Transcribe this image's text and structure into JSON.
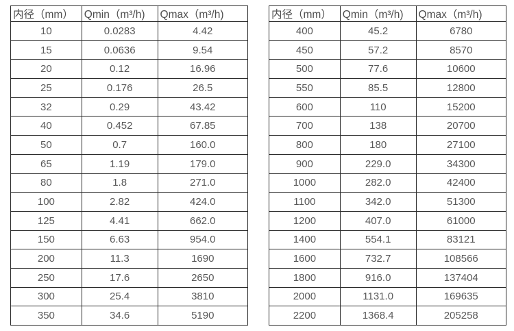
{
  "page": {
    "background_color": "#ffffff",
    "text_color": "#595959",
    "border_color": "#2b2b2b"
  },
  "tables": [
    {
      "name": "flow-range-table-small-dn",
      "headers": [
        "内径（mm）",
        "Qmin（m³/h)",
        "Qmax（m³/h)"
      ],
      "rows": [
        [
          "10",
          "0.0283",
          "4.42"
        ],
        [
          "15",
          "0.0636",
          "9.54"
        ],
        [
          "20",
          "0.12",
          "16.96"
        ],
        [
          "25",
          "0.176",
          "26.5"
        ],
        [
          "32",
          "0.29",
          "43.42"
        ],
        [
          "40",
          "0.452",
          "67.85"
        ],
        [
          "50",
          "0.7",
          "160.0"
        ],
        [
          "65",
          "1.19",
          "179.0"
        ],
        [
          "80",
          "1.8",
          "271.0"
        ],
        [
          "100",
          "2.82",
          "424.0"
        ],
        [
          "125",
          "4.41",
          "662.0"
        ],
        [
          "150",
          "6.63",
          "954.0"
        ],
        [
          "200",
          "11.3",
          "1690"
        ],
        [
          "250",
          "17.6",
          "2650"
        ],
        [
          "300",
          "25.4",
          "3810"
        ],
        [
          "350",
          "34.6",
          "5190"
        ]
      ]
    },
    {
      "name": "flow-range-table-large-dn",
      "headers": [
        "内径（mm）",
        "Qmin（m³/h)",
        "Qmax（m³/h)"
      ],
      "rows": [
        [
          "400",
          "45.2",
          "6780"
        ],
        [
          "450",
          "57.2",
          "8570"
        ],
        [
          "500",
          "77.6",
          "10600"
        ],
        [
          "550",
          "85.5",
          "12800"
        ],
        [
          "600",
          "110",
          "15200"
        ],
        [
          "700",
          "138",
          "20700"
        ],
        [
          "800",
          "180",
          "27100"
        ],
        [
          "900",
          "229.0",
          "34300"
        ],
        [
          "1000",
          "282.0",
          "42400"
        ],
        [
          "1100",
          "342.0",
          "51300"
        ],
        [
          "1200",
          "407.0",
          "61000"
        ],
        [
          "1400",
          "554.1",
          "83121"
        ],
        [
          "1600",
          "732.7",
          "108566"
        ],
        [
          "1800",
          "916.0",
          "137404"
        ],
        [
          "2000",
          "1131.0",
          "169635"
        ],
        [
          "2200",
          "1368.4",
          "205258"
        ]
      ]
    }
  ]
}
